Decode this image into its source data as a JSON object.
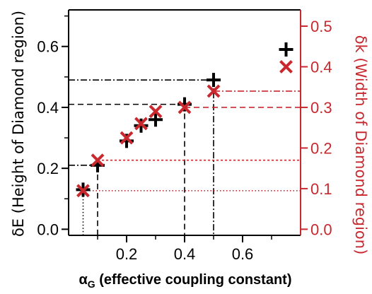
{
  "chart_data": {
    "type": "scatter",
    "xlabel_symbol": "α",
    "xlabel_subscript": "G",
    "xlabel_text": " (effective coupling constant)",
    "ylabel_left": "δE (Height of Diamond region)",
    "ylabel_right": "δk (Width of Diamond region)",
    "xlim": [
      0.0,
      0.8
    ],
    "ylim_left": [
      -0.02,
      0.72
    ],
    "ylim_right": [
      -0.015,
      0.54
    ],
    "xticks": [
      0.2,
      0.4,
      0.6
    ],
    "xtick_labels": [
      "0.2",
      "0.4",
      "0.6"
    ],
    "yticks_left": [
      0.0,
      0.2,
      0.4,
      0.6
    ],
    "ytick_labels_left": [
      "0.0",
      "0.2",
      "0.4",
      "0.6"
    ],
    "yticks_right": [
      0.0,
      0.1,
      0.2,
      0.3,
      0.4,
      0.5
    ],
    "ytick_labels_right": [
      "0.0",
      "0.1",
      "0.2",
      "0.3",
      "0.4",
      "0.5"
    ],
    "series": [
      {
        "axis": "left",
        "marker": "plus",
        "color": "#000000",
        "x": [
          0.05,
          0.1,
          0.2,
          0.25,
          0.3,
          0.4,
          0.5,
          0.75
        ],
        "y": [
          0.13,
          0.21,
          0.29,
          0.34,
          0.36,
          0.41,
          0.49,
          0.59
        ]
      },
      {
        "axis": "right",
        "marker": "cross",
        "color": "#c8282e",
        "x": [
          0.05,
          0.1,
          0.2,
          0.25,
          0.3,
          0.4,
          0.5,
          0.75
        ],
        "y": [
          0.095,
          0.17,
          0.225,
          0.26,
          0.29,
          0.3,
          0.34,
          0.4
        ]
      }
    ],
    "reference_lines": [
      {
        "axis": "left",
        "x": 0.05,
        "y": 0.13,
        "style": "dotted",
        "direction": "down",
        "color": "#000000"
      },
      {
        "axis": "left",
        "x": 0.1,
        "y": 0.21,
        "style": "dashdot",
        "direction": "left",
        "color": "#000000"
      },
      {
        "axis": "left",
        "x": 0.1,
        "y": 0.21,
        "style": "dashed",
        "direction": "down",
        "color": "#000000"
      },
      {
        "axis": "left",
        "x": 0.4,
        "y": 0.41,
        "style": "dashed",
        "direction": "left",
        "color": "#000000"
      },
      {
        "axis": "left",
        "x": 0.4,
        "y": 0.41,
        "style": "dashed",
        "direction": "down",
        "color": "#000000"
      },
      {
        "axis": "left",
        "x": 0.5,
        "y": 0.49,
        "style": "dashdot",
        "direction": "left",
        "color": "#000000"
      },
      {
        "axis": "left",
        "x": 0.5,
        "y": 0.49,
        "style": "dashdot",
        "direction": "down",
        "color": "#000000"
      },
      {
        "axis": "right",
        "x": 0.05,
        "y": 0.095,
        "style": "dotted",
        "direction": "right",
        "color": "#c8282e"
      },
      {
        "axis": "right",
        "x": 0.1,
        "y": 0.17,
        "style": "smalldash",
        "direction": "right",
        "color": "#c8282e"
      },
      {
        "axis": "right",
        "x": 0.4,
        "y": 0.3,
        "style": "dashed",
        "direction": "right",
        "color": "#c8282e"
      },
      {
        "axis": "right",
        "x": 0.5,
        "y": 0.34,
        "style": "dashdot",
        "direction": "right",
        "color": "#c8282e"
      }
    ],
    "colors": {
      "left_axis": "#000000",
      "right_axis": "#c8282e"
    },
    "grid": false,
    "legend": "none"
  }
}
